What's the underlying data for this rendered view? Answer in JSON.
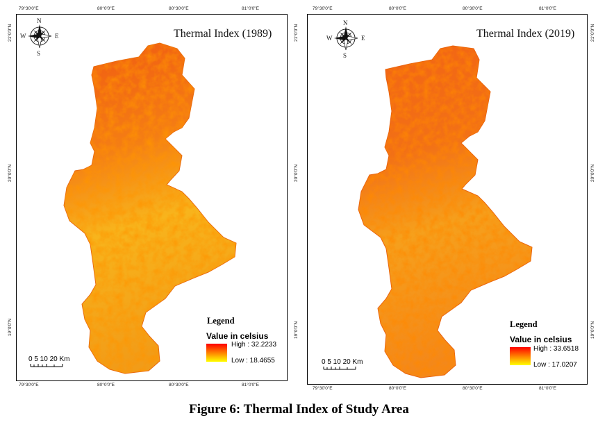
{
  "caption": "Figure 6: Thermal Index of Study Area",
  "colors": {
    "high": "#ff0000",
    "mid": "#ff8000",
    "low": "#ffff00"
  },
  "compass_letters": {
    "n": "N",
    "s": "S",
    "e": "E",
    "w": "W"
  },
  "panels": [
    {
      "title": "Thermal Index (1989)",
      "top_ticks": [
        "79°30'0\"E",
        "80°0'0\"E",
        "80°30'0\"E",
        "81°0'0\"E"
      ],
      "bottom_ticks": [
        "79°30'0\"E",
        "80°0'0\"E",
        "80°30'0\"E",
        "81°0'0\"E"
      ],
      "side_ticks": [
        "21°0'0\"N",
        "20°0'0\"N",
        "19°0'0\"N"
      ],
      "legend_title": "Legend",
      "legend_subtitle": "Value in celsius",
      "legend_high": "High : 32.2233",
      "legend_low": "Low : 18.4655",
      "scale_label": "0  5 10    20 Km"
    },
    {
      "title": "Thermal Index (2019)",
      "top_ticks": [
        "79°30'0\"E",
        "80°0'0\"E",
        "80°30'0\"E",
        "81°0'0\"E"
      ],
      "bottom_ticks": [
        "79°30'0\"E",
        "80°0'0\"E",
        "80°30'0\"E",
        "81°0'0\"E"
      ],
      "side_ticks": [
        "21°0'0\"N",
        "20°0'0\"N",
        "19°0'0\"N"
      ],
      "legend_title": "Legend",
      "legend_subtitle": "Value in celsius",
      "legend_high": "High : 33.6518",
      "legend_low": "Low : 17.0207",
      "scale_label": "0  5 10    20 Km"
    }
  ]
}
